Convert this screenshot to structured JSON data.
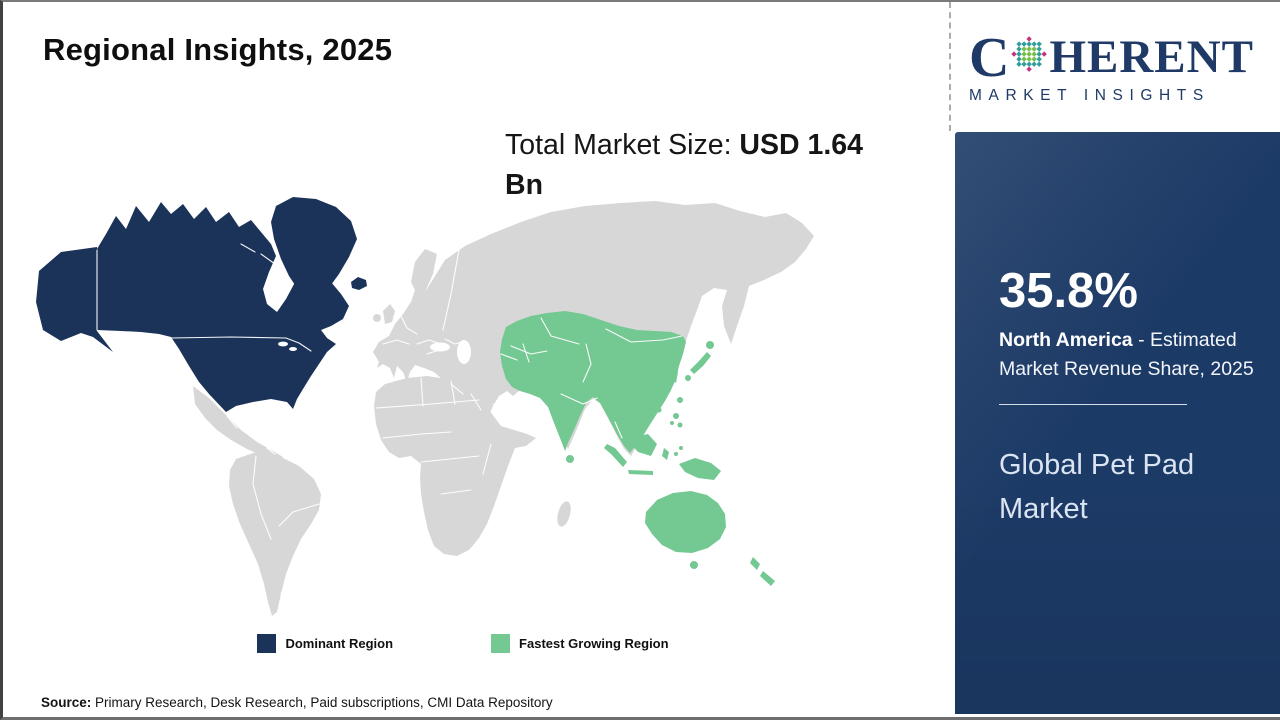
{
  "theme": {
    "map_navy": "#1b3359",
    "map_green": "#74c892",
    "map_gray": "#d7d7d7",
    "sidebar_navy": "#1c3a66",
    "logo_navy": "#1f3a66",
    "globe_teal": "#2f9e9c",
    "globe_green": "#76bf4b",
    "globe_pink": "#c2347f"
  },
  "header": {
    "title": "Regional Insights, 2025"
  },
  "market_size": {
    "prefix": "Total Market Size: ",
    "value": "USD 1.64 Bn"
  },
  "map": {
    "type": "choropleth-world-map",
    "regions": [
      {
        "name": "Dominant Region",
        "area": "North America",
        "color": "#1b3359",
        "share": "35.8%"
      },
      {
        "name": "Fastest Growing Region",
        "area": "Asia Pacific",
        "color": "#74c892"
      },
      {
        "name": "Rest of World",
        "color": "#d7d7d7"
      }
    ]
  },
  "legend": {
    "items": [
      {
        "label": "Dominant Region",
        "color": "#1b3359"
      },
      {
        "label": "Fastest Growing Region",
        "color": "#74c892"
      }
    ]
  },
  "source": {
    "label": "Source:",
    "text": " Primary Research, Desk Research, Paid subscriptions, CMI Data Repository"
  },
  "sidebar": {
    "share_value": "35.8%",
    "region": "North America",
    "share_desc": " - Estimated Market Revenue Share, 2025",
    "market_name": "Global Pet Pad Market"
  },
  "logo": {
    "text_start": "C",
    "text_rest": "HERENT",
    "subtitle": "MARKET INSIGHTS",
    "globe_icon": "dotted-globe"
  }
}
